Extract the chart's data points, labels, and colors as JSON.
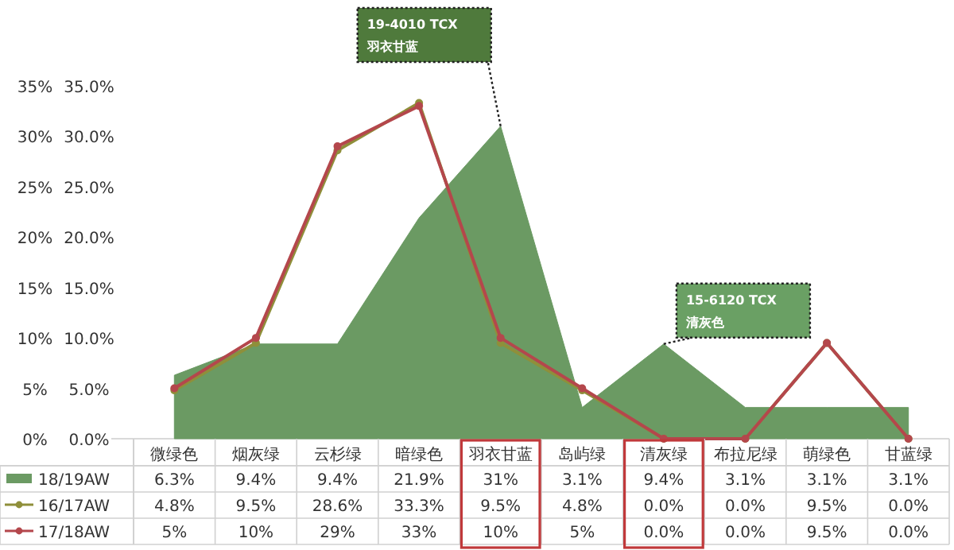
{
  "chart_data": {
    "type": "line",
    "categories": [
      "微绿色",
      "烟灰绿",
      "云杉绿",
      "暗绿色",
      "羽衣甘蓝",
      "岛屿绿",
      "清灰绿",
      "布拉尼绿",
      "萌绿色",
      "甘蓝绿"
    ],
    "series": [
      {
        "name": "18/19AW",
        "type": "area",
        "color": "#6b9a63",
        "values": [
          6.3,
          9.4,
          9.4,
          21.9,
          31,
          3.1,
          9.4,
          3.1,
          3.1,
          3.1
        ],
        "value_labels": [
          "6.3%",
          "9.4%",
          "9.4%",
          "21.9%",
          "31%",
          "3.1%",
          "9.4%",
          "3.1%",
          "3.1%",
          "3.1%"
        ]
      },
      {
        "name": "16/17AW",
        "type": "line",
        "marker": "circle",
        "color": "#8f8f3a",
        "values": [
          4.8,
          9.5,
          28.6,
          33.3,
          9.5,
          4.8,
          0.0,
          0.0,
          9.5,
          0.0
        ],
        "value_labels": [
          "4.8%",
          "9.5%",
          "28.6%",
          "33.3%",
          "9.5%",
          "4.8%",
          "0.0%",
          "0.0%",
          "9.5%",
          "0.0%"
        ]
      },
      {
        "name": "17/18AW",
        "type": "line",
        "marker": "circle",
        "color": "#b4474c",
        "values": [
          5,
          10,
          29,
          33,
          10,
          5,
          0.0,
          0.0,
          9.5,
          0.0
        ],
        "value_labels": [
          "5%",
          "10%",
          "29%",
          "33%",
          "10%",
          "5%",
          "0.0%",
          "0.0%",
          "9.5%",
          "0.0%"
        ]
      }
    ],
    "ylim": [
      0,
      35
    ],
    "yticks": [
      {
        "value": 0,
        "label": "0%"
      },
      {
        "value": 5,
        "label": "5%"
      },
      {
        "value": 10,
        "label": "10%"
      },
      {
        "value": 15,
        "label": "15%"
      },
      {
        "value": 20,
        "label": "20%"
      },
      {
        "value": 25,
        "label": "25%"
      },
      {
        "value": 30,
        "label": "30%"
      },
      {
        "value": 35,
        "label": "35%"
      }
    ],
    "y2lim": [
      0,
      35
    ],
    "y2ticks": [
      {
        "value": 0,
        "label": "0.0%"
      },
      {
        "value": 5,
        "label": "5.0%"
      },
      {
        "value": 10,
        "label": "10.0%"
      },
      {
        "value": 15,
        "label": "15.0%"
      },
      {
        "value": 20,
        "label": "20.0%"
      },
      {
        "value": 25,
        "label": "25.0%"
      },
      {
        "value": 30,
        "label": "30.0%"
      },
      {
        "value": 35,
        "label": "35.0%"
      }
    ],
    "legend": "bottom",
    "annotations": [
      "19-4010 TCX\n羽衣甘蓝",
      "15-6120 TCX\n清灰色"
    ]
  }
}
